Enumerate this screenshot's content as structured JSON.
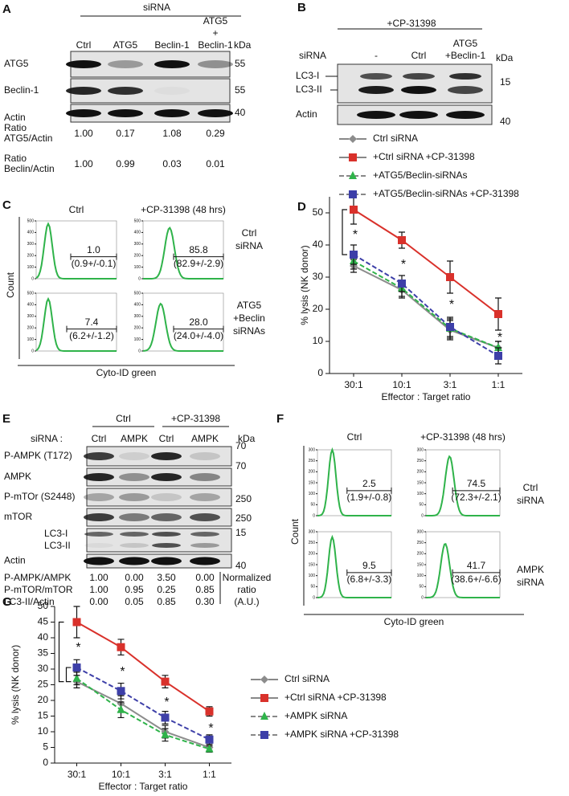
{
  "panels": {
    "A": {
      "letter": "A",
      "header": "siRNA",
      "kda_label": "kDa",
      "lane_lines": [
        [
          "Ctrl"
        ],
        [
          "ATG5"
        ],
        [
          "Beclin-1"
        ],
        [
          "ATG5",
          "+",
          "Beclin-1"
        ]
      ],
      "rows": [
        {
          "label": "ATG5",
          "kda": "55"
        },
        {
          "label": "Beclin-1",
          "kda": "55"
        },
        {
          "label": "Actin",
          "kda": "40"
        }
      ],
      "ratios": [
        {
          "label": [
            "Ratio",
            "ATG5/Actin"
          ],
          "values": [
            "1.00",
            "0.17",
            "1.08",
            "0.29"
          ]
        },
        {
          "label": [
            "Ratio",
            "Beclin/Actin"
          ],
          "values": [
            "1.00",
            "0.99",
            "0.03",
            "0.01"
          ]
        }
      ]
    },
    "B": {
      "letter": "B",
      "header": "+CP-31398",
      "row_label": "siRNA",
      "kda_label": "kDa",
      "lane_lines": [
        [
          "-"
        ],
        [
          "Ctrl"
        ],
        [
          "ATG5",
          "+Beclin-1"
        ]
      ],
      "blots": [
        {
          "labels": [
            "LC3-I",
            "LC3-II"
          ],
          "kda": "15"
        },
        {
          "labels": [
            "Actin"
          ],
          "kda": "40"
        }
      ]
    },
    "C": {
      "letter": "C",
      "columns": [
        "Ctrl",
        "+CP-31398 (48 hrs)"
      ],
      "rows": [
        [
          "Ctrl",
          "siRNA"
        ],
        [
          "ATG5",
          "+Beclin",
          "siRNAs"
        ]
      ],
      "y_label": "Count",
      "x_label": "Cyto-ID green",
      "yticks": [
        0,
        100,
        200,
        300,
        400,
        500
      ],
      "cells": [
        {
          "value": "1.0",
          "range": "(0.9+/-0.1)"
        },
        {
          "value": "85.8",
          "range": "(82.9+/-2.9)"
        },
        {
          "value": "7.4",
          "range": "(6.2+/-1.2)"
        },
        {
          "value": "28.0",
          "range": "(24.0+/-4.0)"
        }
      ]
    },
    "E": {
      "letter": "E",
      "row_label": "siRNA :",
      "groups": [
        "Ctrl",
        "+CP-31398"
      ],
      "kda_label": "kDa",
      "lanes": [
        "Ctrl",
        "AMPK",
        "Ctrl",
        "AMPK"
      ],
      "rows": [
        {
          "labels": [
            "P-AMPK (T172)"
          ],
          "kda": "70"
        },
        {
          "labels": [
            "AMPK"
          ],
          "kda": "70"
        },
        {
          "labels": [
            "P-mTOr (S2448)"
          ],
          "kda": "250"
        },
        {
          "labels": [
            "mTOR"
          ],
          "kda": "250"
        },
        {
          "labels": [
            "LC3-I",
            "LC3-II"
          ],
          "kda": "15"
        },
        {
          "labels": [
            "Actin"
          ],
          "kda": "40"
        }
      ],
      "ratios": [
        {
          "label": "P-AMPK/AMPK",
          "values": [
            "1.00",
            "0.00",
            "3.50",
            "0.00"
          ]
        },
        {
          "label": "P-mTOR/mTOR",
          "values": [
            "1.00",
            "0.95",
            "0.25",
            "0.85"
          ]
        },
        {
          "label": "LC3-II/Actin",
          "values": [
            "0.00",
            "0.05",
            "0.85",
            "0.30"
          ]
        }
      ],
      "ratio_note": [
        "Normalized",
        "ratio",
        "(A.U.)"
      ]
    },
    "F": {
      "letter": "F",
      "columns": [
        "Ctrl",
        "+CP-31398 (48 hrs)"
      ],
      "rows": [
        [
          "Ctrl",
          "siRNA"
        ],
        [
          "AMPK",
          "siRNA"
        ]
      ],
      "y_label": "Count",
      "x_label": "Cyto-ID green",
      "yticks": [
        0,
        50,
        100,
        150,
        200,
        250,
        300
      ],
      "cells": [
        {
          "value": "2.5",
          "range": "(1.9+/-0.8)"
        },
        {
          "value": "74.5",
          "range": "(72.3+/-2.1)"
        },
        {
          "value": "9.5",
          "range": "(6.8+/-3.3)"
        },
        {
          "value": "41.7",
          "range": "(38.6+/-6.6)"
        }
      ]
    }
  },
  "chart_data": [
    {
      "type": "line",
      "letter": "D",
      "y_label": "% lysis (NK donor)",
      "x_label": "Effector : Target ratio",
      "categories": [
        "30:1",
        "10:1",
        "3:1",
        "1:1"
      ],
      "ylim": [
        0,
        55
      ],
      "yticks": [
        0,
        10,
        20,
        30,
        40,
        50
      ],
      "significance": [
        "*",
        "*",
        "*",
        "*"
      ],
      "series": [
        {
          "name": "Ctrl siRNA",
          "color": "#8c8c8c",
          "marker": "diamond",
          "dashed": false,
          "values": [
            33.5,
            26,
            13.5,
            8
          ],
          "errors": [
            2,
            2.5,
            3,
            2
          ]
        },
        {
          "name": "+Ctrl siRNA +CP-31398",
          "color": "#d9312b",
          "marker": "square",
          "dashed": false,
          "values": [
            51,
            41.5,
            30,
            18.5
          ],
          "errors": [
            4.5,
            2.5,
            5,
            5
          ]
        },
        {
          "name": "+ATG5/Beclin-siRNAs",
          "color": "#2fb34a",
          "marker": "triangle",
          "dashed": true,
          "values": [
            35,
            26.5,
            14,
            8
          ],
          "errors": [
            2.5,
            2.5,
            3,
            2
          ]
        },
        {
          "name": "+ATG5/Beclin-siRNAs +CP-31398",
          "color": "#3d3fa8",
          "marker": "square",
          "dashed": true,
          "values": [
            37,
            28,
            14.5,
            5.5
          ],
          "errors": [
            3,
            2.5,
            3,
            2.5
          ]
        }
      ]
    },
    {
      "type": "line",
      "letter": "G",
      "y_label": "% lysis (NK donor)",
      "x_label": "Effector : Target ratio",
      "categories": [
        "30:1",
        "10:1",
        "3:1",
        "1:1"
      ],
      "ylim": [
        0,
        50
      ],
      "yticks": [
        0,
        5,
        10,
        15,
        20,
        25,
        30,
        35,
        40,
        45,
        50
      ],
      "significance": [
        "*",
        "*",
        "*",
        "*"
      ],
      "series": [
        {
          "name": "Ctrl siRNA",
          "color": "#8c8c8c",
          "marker": "diamond",
          "dashed": false,
          "values": [
            26,
            19,
            10,
            5
          ],
          "errors": [
            2,
            2.5,
            2,
            1
          ]
        },
        {
          "name": "+Ctrl siRNA +CP-31398",
          "color": "#d9312b",
          "marker": "square",
          "dashed": false,
          "values": [
            45,
            37,
            26,
            16.5
          ],
          "errors": [
            5,
            2.5,
            2,
            1.5
          ]
        },
        {
          "name": "+AMPK siRNA",
          "color": "#2fb34a",
          "marker": "triangle",
          "dashed": true,
          "values": [
            27,
            17,
            9,
            4.5
          ],
          "errors": [
            2,
            2.5,
            2,
            1
          ]
        },
        {
          "name": "+AMPK siRNA +CP-31398",
          "color": "#3d3fa8",
          "marker": "square",
          "dashed": true,
          "values": [
            30.5,
            23,
            14.5,
            7.5
          ],
          "errors": [
            2.5,
            2.5,
            2,
            1.5
          ]
        }
      ]
    }
  ]
}
